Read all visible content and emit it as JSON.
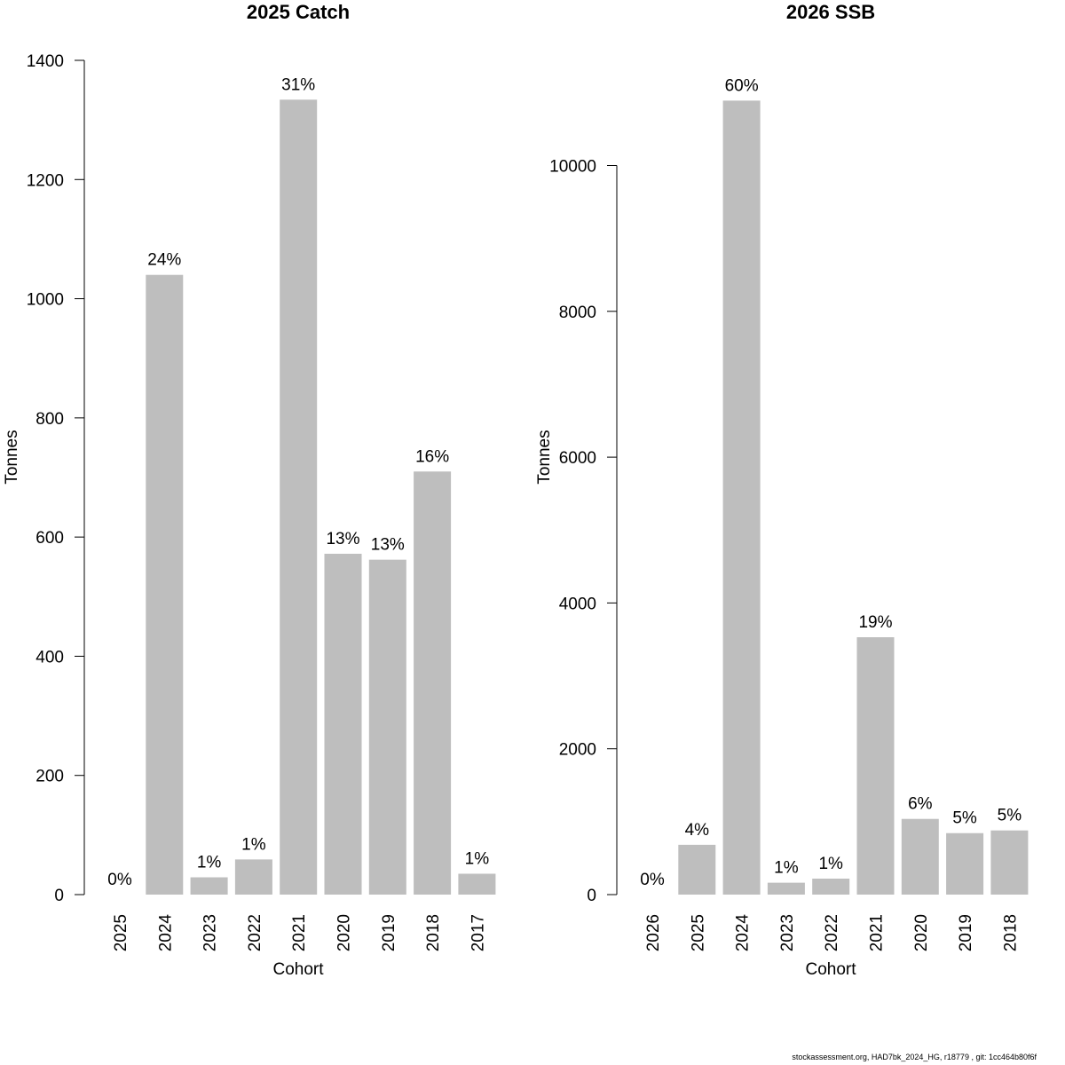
{
  "footer": "stockassessment.org, HAD7bk_2024_HG, r18779 , git: 1cc464b80f6f",
  "colors": {
    "bar": "#bebebe",
    "axis": "#000000",
    "text": "#000000"
  },
  "chart_data": [
    {
      "type": "bar",
      "title": "2025 Catch",
      "xlabel": "Cohort",
      "ylabel": "Tonnes",
      "ylim": [
        0,
        1400
      ],
      "yticks": [
        0,
        200,
        400,
        600,
        800,
        1000,
        1200,
        1400
      ],
      "ytick_labels": [
        "0",
        "200",
        "400",
        "600",
        "800",
        "1000",
        "1200",
        "1400"
      ],
      "categories": [
        "2025",
        "2024",
        "2023",
        "2022",
        "2021",
        "2020",
        "2019",
        "2018",
        "2017"
      ],
      "values": [
        0,
        1040,
        29,
        59,
        1334,
        572,
        562,
        710,
        35
      ],
      "value_labels": [
        "0%",
        "24%",
        "1%",
        "1%",
        "31%",
        "13%",
        "13%",
        "16%",
        "1%"
      ],
      "grid": false
    },
    {
      "type": "bar",
      "title": "2026 SSB",
      "xlabel": "Cohort",
      "ylabel": "Tonnes",
      "ylim": [
        0,
        11000
      ],
      "yticks": [
        0,
        2000,
        4000,
        6000,
        8000,
        10000
      ],
      "ytick_labels": [
        "0",
        "2000",
        "4000",
        "6000",
        "8000",
        "10000"
      ],
      "categories": [
        "2026",
        "2025",
        "2024",
        "2023",
        "2022",
        "2021",
        "2020",
        "2019",
        "2018"
      ],
      "values": [
        0,
        683,
        10890,
        163,
        219,
        3530,
        1038,
        843,
        880
      ],
      "value_labels": [
        "0%",
        "4%",
        "60%",
        "1%",
        "1%",
        "19%",
        "6%",
        "5%",
        "5%"
      ],
      "grid": false
    }
  ]
}
